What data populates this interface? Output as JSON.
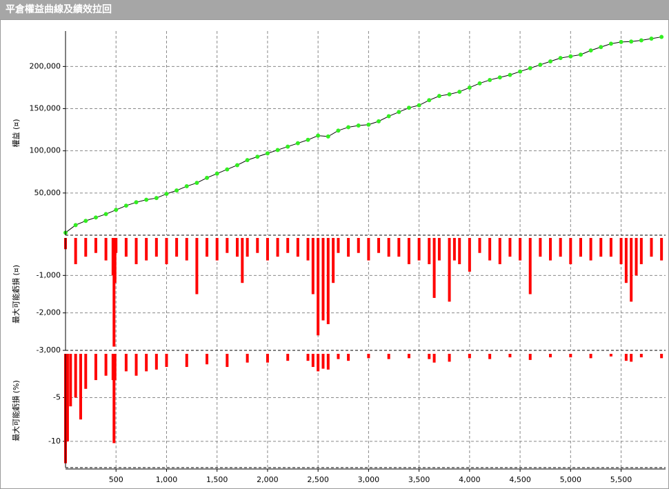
{
  "title": "平倉權益曲線及績效拉回",
  "chart_data": [
    {
      "type": "line",
      "ylabel": "權益 (¤)",
      "color": "#33ee22",
      "line_color": "#000000",
      "xlim": [
        0,
        5940
      ],
      "ylim": [
        0,
        242000
      ],
      "yticks": [
        {
          "value": 50000,
          "label": "50,000"
        },
        {
          "value": 100000,
          "label": "100,000"
        },
        {
          "value": 150000,
          "label": "150,000"
        },
        {
          "value": 200000,
          "label": "200,000"
        }
      ],
      "x": [
        0,
        100,
        200,
        300,
        400,
        500,
        600,
        700,
        800,
        900,
        1000,
        1100,
        1200,
        1300,
        1400,
        1500,
        1600,
        1700,
        1800,
        1900,
        2000,
        2100,
        2200,
        2300,
        2400,
        2500,
        2600,
        2700,
        2800,
        2900,
        3000,
        3100,
        3200,
        3300,
        3400,
        3500,
        3600,
        3700,
        3800,
        3900,
        4000,
        4100,
        4200,
        4300,
        4400,
        4500,
        4600,
        4700,
        4800,
        4900,
        5000,
        5100,
        5200,
        5300,
        5400,
        5500,
        5600,
        5700,
        5800,
        5900
      ],
      "values": [
        3000,
        12000,
        17000,
        21000,
        25000,
        30000,
        35000,
        39000,
        42000,
        44000,
        49000,
        53000,
        58000,
        62000,
        68000,
        73000,
        78000,
        83000,
        89000,
        93000,
        97000,
        101000,
        105000,
        109000,
        113000,
        118000,
        117000,
        124000,
        128000,
        130000,
        131000,
        135000,
        141000,
        146000,
        151000,
        154000,
        160000,
        165000,
        167000,
        170000,
        175000,
        180000,
        184000,
        187000,
        190000,
        194000,
        198000,
        202000,
        206000,
        210000,
        212000,
        214000,
        219000,
        223000,
        227000,
        229000,
        229500,
        231000,
        233000,
        235000
      ]
    },
    {
      "type": "bar",
      "ylabel": "最大可能虧損 (¤)",
      "color": "#ff0000",
      "xlim": [
        0,
        5940
      ],
      "ylim": [
        -3000,
        0
      ],
      "yticks": [
        {
          "value": -1000,
          "label": "-1,000"
        },
        {
          "value": -2000,
          "label": "-2,000"
        },
        {
          "value": -3000,
          "label": "-3,000"
        }
      ],
      "x": [
        0,
        100,
        200,
        300,
        400,
        470,
        480,
        490,
        500,
        600,
        700,
        800,
        900,
        1000,
        1100,
        1200,
        1300,
        1400,
        1500,
        1600,
        1700,
        1750,
        1800,
        1900,
        2000,
        2100,
        2200,
        2300,
        2400,
        2450,
        2500,
        2550,
        2600,
        2650,
        2700,
        2800,
        2900,
        3000,
        3100,
        3200,
        3300,
        3400,
        3500,
        3600,
        3650,
        3700,
        3800,
        3850,
        3900,
        4000,
        4100,
        4200,
        4300,
        4400,
        4500,
        4600,
        4700,
        4800,
        4900,
        5000,
        5100,
        5200,
        5300,
        5400,
        5500,
        5550,
        5600,
        5650,
        5700,
        5800,
        5900
      ],
      "values": [
        -300,
        -700,
        -500,
        -400,
        -600,
        -1000,
        -2900,
        -1200,
        -400,
        -500,
        -700,
        -600,
        -500,
        -700,
        -500,
        -600,
        -1500,
        -500,
        -600,
        -400,
        -500,
        -1200,
        -500,
        -400,
        -600,
        -500,
        -400,
        -500,
        -600,
        -1500,
        -2600,
        -2200,
        -2300,
        -1200,
        -400,
        -500,
        -400,
        -600,
        -400,
        -500,
        -500,
        -700,
        -600,
        -700,
        -1600,
        -600,
        -1700,
        -600,
        -700,
        -900,
        -400,
        -600,
        -700,
        -500,
        -600,
        -1500,
        -500,
        -600,
        -500,
        -700,
        -500,
        -600,
        -500,
        -500,
        -700,
        -1200,
        -1700,
        -1000,
        -700,
        -500,
        -600
      ]
    },
    {
      "type": "bar",
      "ylabel": "最大可能虧損 (%)",
      "color": "#ff0000",
      "xlim": [
        0,
        5940
      ],
      "ylim": [
        -13,
        0
      ],
      "yticks": [
        -5,
        -10
      ],
      "xticks": [
        {
          "value": 500,
          "label": "500"
        },
        {
          "value": 1000,
          "label": "1,000"
        },
        {
          "value": 1500,
          "label": "1,500"
        },
        {
          "value": 2000,
          "label": "2,000"
        },
        {
          "value": 2500,
          "label": "2,500"
        },
        {
          "value": 3000,
          "label": "3,000"
        },
        {
          "value": 3500,
          "label": "3,500"
        },
        {
          "value": 4000,
          "label": "4,000"
        },
        {
          "value": 4500,
          "label": "4,500"
        },
        {
          "value": 5000,
          "label": "5,000"
        },
        {
          "value": 5500,
          "label": "5,500"
        }
      ],
      "x": [
        0,
        20,
        50,
        100,
        150,
        200,
        300,
        400,
        470,
        480,
        490,
        600,
        700,
        800,
        900,
        1000,
        1200,
        1400,
        1600,
        1800,
        2000,
        2200,
        2400,
        2450,
        2500,
        2550,
        2600,
        2700,
        2800,
        3000,
        3200,
        3400,
        3600,
        3650,
        3800,
        4000,
        4200,
        4400,
        4600,
        4800,
        5000,
        5200,
        5400,
        5550,
        5600,
        5700,
        5900
      ],
      "values": [
        -12.5,
        -10,
        -6,
        -5,
        -7.5,
        -4,
        -3,
        -2.5,
        -3,
        -10.2,
        -3,
        -2,
        -2.5,
        -2,
        -1.8,
        -1.5,
        -1.5,
        -1.2,
        -1.5,
        -1,
        -1,
        -0.8,
        -0.8,
        -1.5,
        -2,
        -1.7,
        -1.8,
        -0.6,
        -0.8,
        -0.5,
        -0.6,
        -0.5,
        -0.6,
        -1,
        -0.9,
        -0.5,
        -0.6,
        -0.4,
        -0.7,
        -0.4,
        -0.4,
        -0.5,
        -0.3,
        -0.8,
        -0.9,
        -0.4,
        -0.5
      ]
    }
  ]
}
